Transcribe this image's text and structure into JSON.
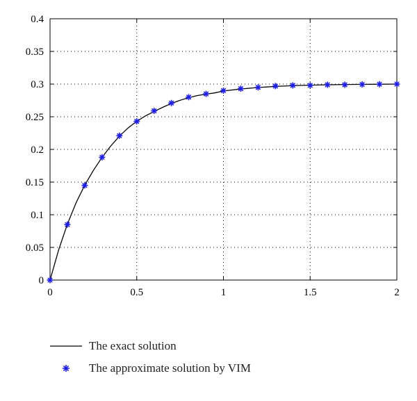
{
  "chart_data": {
    "type": "line",
    "xlim": [
      0,
      2
    ],
    "ylim": [
      0,
      0.4
    ],
    "x_ticks": [
      "0",
      "0.5",
      "1",
      "1.5",
      "2"
    ],
    "y_ticks": [
      "0",
      "0.05",
      "0.1",
      "0.15",
      "0.2",
      "0.25",
      "0.3",
      "0.35",
      "0.4"
    ],
    "grid": true,
    "legend_position": "bottom",
    "series": [
      {
        "name": "The exact solution",
        "style": "line",
        "color": "#000000",
        "x": [
          0,
          0.05,
          0.1,
          0.15,
          0.2,
          0.25,
          0.3,
          0.35,
          0.4,
          0.45,
          0.5,
          0.55,
          0.6,
          0.65,
          0.7,
          0.75,
          0.8,
          0.85,
          0.9,
          0.95,
          1.0,
          1.1,
          1.2,
          1.3,
          1.4,
          1.5,
          1.6,
          1.7,
          1.8,
          1.9,
          2.0
        ],
        "y": [
          0,
          0.0465,
          0.0856,
          0.1182,
          0.1453,
          0.1679,
          0.1879,
          0.2052,
          0.2203,
          0.2329,
          0.2431,
          0.2513,
          0.258,
          0.2645,
          0.2705,
          0.2752,
          0.2793,
          0.2824,
          0.2847,
          0.2865,
          0.2895,
          0.2925,
          0.2948,
          0.2964,
          0.2976,
          0.2984,
          0.2989,
          0.2993,
          0.2996,
          0.2998,
          0.3
        ]
      },
      {
        "name": "The approximate solution by VIM",
        "style": "marker",
        "marker": "*",
        "color": "#1f1fe6",
        "x": [
          0,
          0.1,
          0.2,
          0.3,
          0.4,
          0.5,
          0.6,
          0.7,
          0.8,
          0.9,
          1.0,
          1.1,
          1.2,
          1.3,
          1.4,
          1.5,
          1.6,
          1.7,
          1.8,
          1.9,
          2.0
        ],
        "y": [
          0,
          0.085,
          0.145,
          0.188,
          0.221,
          0.243,
          0.259,
          0.271,
          0.28,
          0.285,
          0.29,
          0.293,
          0.295,
          0.297,
          0.298,
          0.298,
          0.299,
          0.299,
          0.2995,
          0.2998,
          0.3
        ]
      }
    ]
  }
}
